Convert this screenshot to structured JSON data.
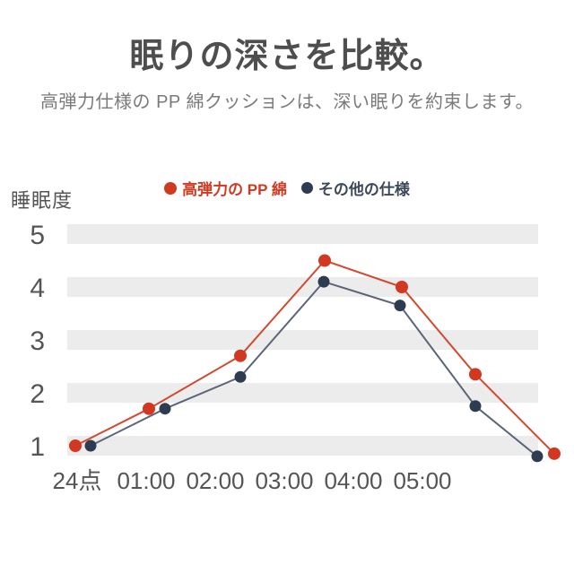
{
  "page": {
    "title": "眠りの深さを比較。",
    "subtitle": "高弾力仕様の PP 綿クッションは、深い眠りを約束します。"
  },
  "legend": [
    {
      "label": "高弾力の PP 綿",
      "color": "#d03a22"
    },
    {
      "label": "その他の仕様",
      "color": "#2e3c52"
    }
  ],
  "chart_data": {
    "type": "line",
    "title": "眠りの深さを比較。",
    "ylabel": "睡眠度",
    "xlabel": "",
    "categories": [
      "24点",
      "01:00",
      "02:00",
      "03:00",
      "04:00",
      "05:00"
    ],
    "yticks": [
      1,
      2,
      3,
      4,
      5
    ],
    "ylim": [
      0.5,
      5.5
    ],
    "grid": "horizontal-stripes",
    "legend_position": "top-center",
    "stripe_color": "#ececec",
    "axis_color": "#555555",
    "series": [
      {
        "name": "高弾力の PP 綿",
        "color": "#d23722",
        "line_color": "#d2492e",
        "values": [
          1.0,
          1.7,
          2.7,
          4.5,
          4.0,
          2.35,
          0.85
        ]
      },
      {
        "name": "その他の仕様",
        "color": "#2e3c52",
        "line_color": "#5b6577",
        "values": [
          1.0,
          1.7,
          2.3,
          4.1,
          3.65,
          1.75,
          0.8
        ]
      }
    ],
    "note": "Both lines extend one point past the 05:00 label with no axis label for it"
  }
}
